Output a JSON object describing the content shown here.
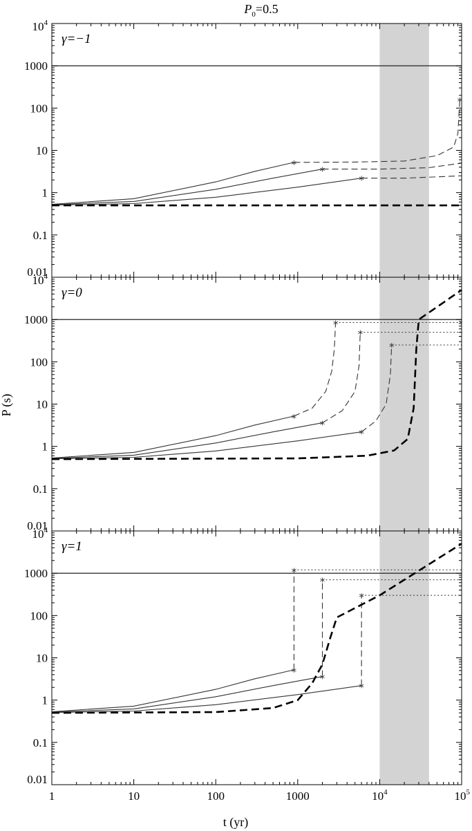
{
  "title": {
    "prefix": "P",
    "sub": "0",
    "suffix": "=0.5"
  },
  "xlabel": "t (yr)",
  "ylabel": "P (s)",
  "star_symbol": "*",
  "colors": {
    "shade": "#d3d3d3",
    "line": "#333333",
    "thick": "#000000"
  },
  "chart_data": [
    {
      "type": "line",
      "panel_label": "γ=−1",
      "x_scale": "log",
      "y_scale": "log",
      "xlim": [
        1,
        100000
      ],
      "ylim": [
        0.01,
        10000
      ],
      "x_ticks": [
        "1",
        "10",
        "100",
        "1000",
        "10^4",
        "10^5"
      ],
      "y_ticks": [
        "0.01",
        "0.1",
        "1",
        "10",
        "100",
        "1000",
        "10^4"
      ],
      "shaded_x_range": [
        10000,
        40000
      ],
      "hlines": [
        1000
      ],
      "series": [
        {
          "style": "thin-solid",
          "points": [
            [
              1,
              0.53
            ],
            [
              10,
              0.72
            ],
            [
              100,
              1.8
            ],
            [
              300,
              3.2
            ],
            [
              900,
              5.2
            ]
          ]
        },
        {
          "style": "thin-solid",
          "points": [
            [
              1,
              0.52
            ],
            [
              10,
              0.62
            ],
            [
              100,
              1.2
            ],
            [
              500,
              2.2
            ],
            [
              2000,
              3.6
            ]
          ]
        },
        {
          "style": "thin-solid",
          "points": [
            [
              1,
              0.51
            ],
            [
              10,
              0.55
            ],
            [
              100,
              0.78
            ],
            [
              1000,
              1.35
            ],
            [
              6000,
              2.2
            ]
          ]
        },
        {
          "style": "thin-dashed",
          "points": [
            [
              900,
              5.2
            ],
            [
              5000,
              5.3
            ],
            [
              20000,
              5.6
            ],
            [
              50000,
              7.5
            ],
            [
              80000,
              12
            ],
            [
              90000,
              25
            ],
            [
              95000,
              160
            ]
          ]
        },
        {
          "style": "thin-dashed",
          "points": [
            [
              2000,
              3.6
            ],
            [
              10000,
              3.6
            ],
            [
              40000,
              3.9
            ],
            [
              100000,
              5.0
            ]
          ]
        },
        {
          "style": "thin-dashed",
          "points": [
            [
              6000,
              2.2
            ],
            [
              20000,
              2.2
            ],
            [
              60000,
              2.4
            ],
            [
              100000,
              2.5
            ]
          ]
        },
        {
          "style": "thick-dashed",
          "points": [
            [
              1,
              0.5
            ],
            [
              100000,
              0.5
            ]
          ]
        }
      ],
      "stars": [
        [
          900,
          5.2
        ],
        [
          2000,
          3.6
        ],
        [
          6000,
          2.2
        ],
        [
          95000,
          160
        ]
      ]
    },
    {
      "type": "line",
      "panel_label": "γ=0",
      "x_scale": "log",
      "y_scale": "log",
      "xlim": [
        1,
        100000
      ],
      "ylim": [
        0.01,
        10000
      ],
      "x_ticks": [
        "1",
        "10",
        "100",
        "1000",
        "10^4",
        "10^5"
      ],
      "y_ticks": [
        "0.01",
        "0.1",
        "1",
        "10",
        "100",
        "1000",
        "10^4"
      ],
      "shaded_x_range": [
        10000,
        40000
      ],
      "hlines": [
        1000
      ],
      "series": [
        {
          "style": "thin-solid",
          "points": [
            [
              1,
              0.53
            ],
            [
              10,
              0.72
            ],
            [
              100,
              1.8
            ],
            [
              300,
              3.2
            ],
            [
              900,
              5.2
            ]
          ]
        },
        {
          "style": "thin-solid",
          "points": [
            [
              1,
              0.52
            ],
            [
              10,
              0.62
            ],
            [
              100,
              1.2
            ],
            [
              500,
              2.2
            ],
            [
              2000,
              3.6
            ]
          ]
        },
        {
          "style": "thin-solid",
          "points": [
            [
              1,
              0.51
            ],
            [
              10,
              0.55
            ],
            [
              100,
              0.78
            ],
            [
              1000,
              1.35
            ],
            [
              6000,
              2.2
            ]
          ]
        },
        {
          "style": "thin-dashed",
          "points": [
            [
              900,
              5.2
            ],
            [
              1500,
              8
            ],
            [
              2200,
              20
            ],
            [
              2600,
              60
            ],
            [
              2800,
              200
            ],
            [
              2900,
              850
            ]
          ]
        },
        {
          "style": "thin-dashed",
          "points": [
            [
              2000,
              3.6
            ],
            [
              3500,
              7
            ],
            [
              5000,
              20
            ],
            [
              5600,
              80
            ],
            [
              5800,
              500
            ]
          ]
        },
        {
          "style": "thin-dashed",
          "points": [
            [
              6000,
              2.2
            ],
            [
              9000,
              4
            ],
            [
              12000,
              10
            ],
            [
              13500,
              50
            ],
            [
              14000,
              250
            ]
          ]
        },
        {
          "style": "thick-dashed",
          "points": [
            [
              1,
              0.5
            ],
            [
              1000,
              0.52
            ],
            [
              7000,
              0.6
            ],
            [
              15000,
              0.8
            ],
            [
              22000,
              1.5
            ],
            [
              26000,
              8
            ],
            [
              28000,
              200
            ],
            [
              30000,
              1000
            ],
            [
              100000,
              5000
            ]
          ]
        },
        {
          "style": "dotted",
          "points": [
            [
              2900,
              850
            ],
            [
              100000,
              850
            ]
          ]
        },
        {
          "style": "dotted",
          "points": [
            [
              5800,
              500
            ],
            [
              100000,
              500
            ]
          ]
        },
        {
          "style": "dotted",
          "points": [
            [
              14000,
              250
            ],
            [
              100000,
              250
            ]
          ]
        }
      ],
      "stars": [
        [
          900,
          5.2
        ],
        [
          2000,
          3.6
        ],
        [
          6000,
          2.2
        ],
        [
          2900,
          850
        ],
        [
          5800,
          500
        ],
        [
          14000,
          250
        ]
      ]
    },
    {
      "type": "line",
      "panel_label": "γ=1",
      "x_scale": "log",
      "y_scale": "log",
      "xlim": [
        1,
        100000
      ],
      "ylim": [
        0.01,
        10000
      ],
      "x_ticks": [
        "1",
        "10",
        "100",
        "1000",
        "10^4",
        "10^5"
      ],
      "y_ticks": [
        "0.01",
        "0.1",
        "1",
        "10",
        "100",
        "1000",
        "10^4"
      ],
      "shaded_x_range": [
        10000,
        40000
      ],
      "hlines": [
        1000
      ],
      "series": [
        {
          "style": "thin-solid",
          "points": [
            [
              1,
              0.53
            ],
            [
              10,
              0.72
            ],
            [
              100,
              1.8
            ],
            [
              300,
              3.2
            ],
            [
              900,
              5.2
            ]
          ]
        },
        {
          "style": "thin-solid",
          "points": [
            [
              1,
              0.52
            ],
            [
              10,
              0.62
            ],
            [
              100,
              1.2
            ],
            [
              500,
              2.2
            ],
            [
              2000,
              3.6
            ]
          ]
        },
        {
          "style": "thin-solid",
          "points": [
            [
              1,
              0.51
            ],
            [
              10,
              0.55
            ],
            [
              100,
              0.78
            ],
            [
              1000,
              1.35
            ],
            [
              6000,
              2.2
            ]
          ]
        },
        {
          "style": "thin-dashed",
          "points": [
            [
              900,
              5.2
            ],
            [
              900,
              1200
            ]
          ]
        },
        {
          "style": "thin-dashed",
          "points": [
            [
              2000,
              3.6
            ],
            [
              2000,
              700
            ]
          ]
        },
        {
          "style": "thin-dashed",
          "points": [
            [
              6000,
              2.2
            ],
            [
              6000,
              300
            ]
          ]
        },
        {
          "style": "thick-dashed",
          "points": [
            [
              1,
              0.5
            ],
            [
              100,
              0.52
            ],
            [
              500,
              0.65
            ],
            [
              1000,
              1
            ],
            [
              1500,
              2.5
            ],
            [
              2000,
              7
            ],
            [
              2500,
              30
            ],
            [
              3000,
              90
            ],
            [
              10000,
              300
            ],
            [
              100000,
              5000
            ]
          ]
        },
        {
          "style": "dotted",
          "points": [
            [
              900,
              1200
            ],
            [
              100000,
              1200
            ]
          ]
        },
        {
          "style": "dotted",
          "points": [
            [
              2000,
              700
            ],
            [
              100000,
              700
            ]
          ]
        },
        {
          "style": "dotted",
          "points": [
            [
              6000,
              300
            ],
            [
              100000,
              300
            ]
          ]
        }
      ],
      "stars": [
        [
          900,
          5.2
        ],
        [
          2000,
          3.6
        ],
        [
          6000,
          2.2
        ],
        [
          900,
          1200
        ],
        [
          2000,
          700
        ],
        [
          6000,
          300
        ]
      ]
    }
  ]
}
